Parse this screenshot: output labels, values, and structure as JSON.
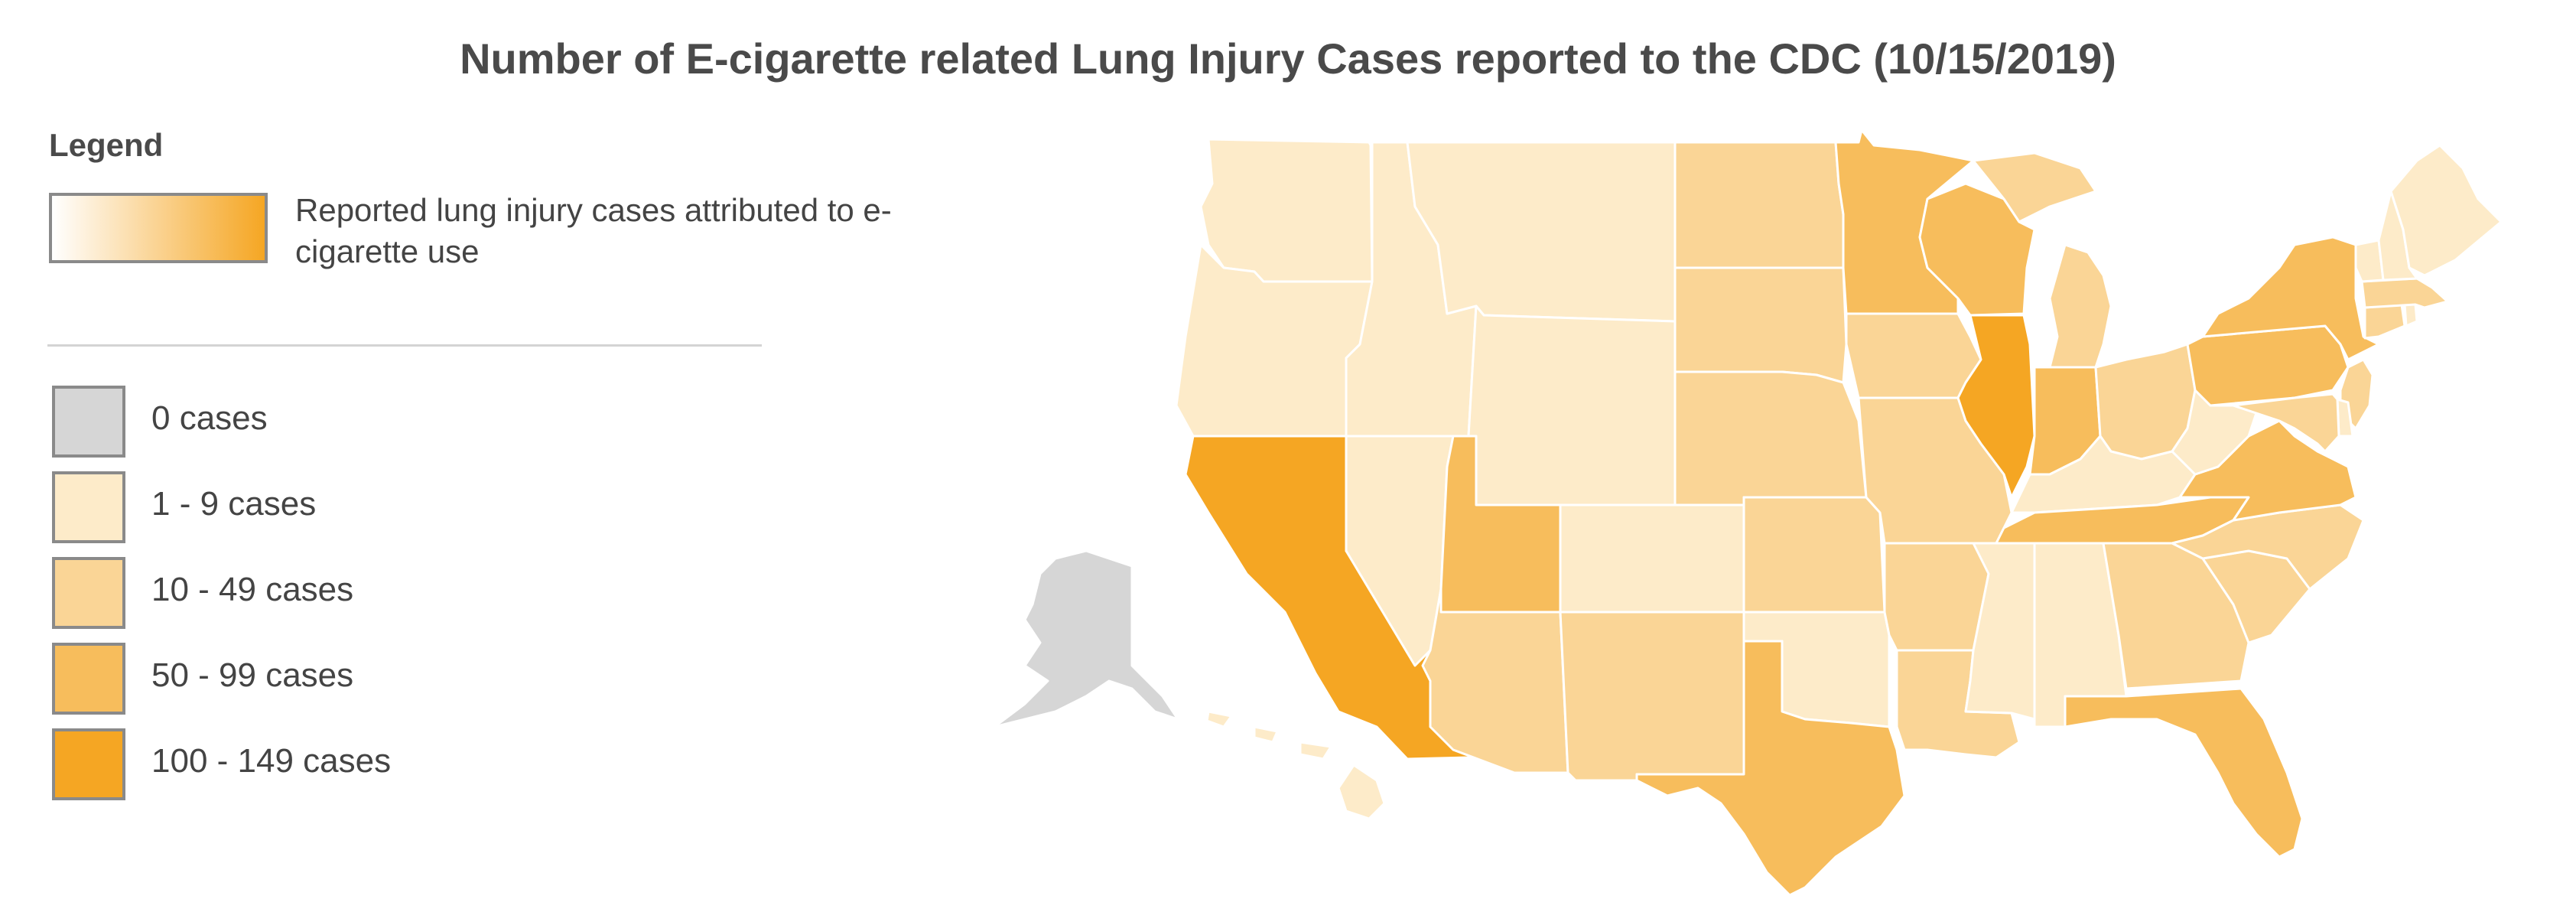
{
  "title": "Number of E-cigarette related Lung Injury Cases reported to the CDC (10/15/2019)",
  "legend": {
    "heading": "Legend",
    "gradient_label": "Reported lung injury cases attributed to e-cigarette use",
    "gradient_colors": [
      "#ffffff",
      "#f5a623"
    ],
    "bins": [
      {
        "label": "0 cases",
        "color": "#d6d6d6"
      },
      {
        "label": "1 - 9 cases",
        "color": "#fdebc9"
      },
      {
        "label": "10 - 49 cases",
        "color": "#fad596"
      },
      {
        "label": "50 - 99 cases",
        "color": "#f7bd5c"
      },
      {
        "label": "100 - 149 cases",
        "color": "#f5a623"
      }
    ]
  },
  "states": [
    {
      "code": "WA",
      "bin": 1
    },
    {
      "code": "OR",
      "bin": 1
    },
    {
      "code": "CA",
      "bin": 4
    },
    {
      "code": "NV",
      "bin": 1
    },
    {
      "code": "ID",
      "bin": 1
    },
    {
      "code": "MT",
      "bin": 1
    },
    {
      "code": "WY",
      "bin": 1
    },
    {
      "code": "UT",
      "bin": 3
    },
    {
      "code": "AZ",
      "bin": 2
    },
    {
      "code": "CO",
      "bin": 1
    },
    {
      "code": "NM",
      "bin": 2
    },
    {
      "code": "ND",
      "bin": 2
    },
    {
      "code": "SD",
      "bin": 2
    },
    {
      "code": "NE",
      "bin": 2
    },
    {
      "code": "KS",
      "bin": 2
    },
    {
      "code": "OK",
      "bin": 1
    },
    {
      "code": "TX",
      "bin": 3
    },
    {
      "code": "MN",
      "bin": 3
    },
    {
      "code": "IA",
      "bin": 2
    },
    {
      "code": "MO",
      "bin": 2
    },
    {
      "code": "AR",
      "bin": 2
    },
    {
      "code": "LA",
      "bin": 2
    },
    {
      "code": "WI",
      "bin": 3
    },
    {
      "code": "IL",
      "bin": 4
    },
    {
      "code": "MI",
      "bin": 2
    },
    {
      "code": "IN",
      "bin": 3
    },
    {
      "code": "OH",
      "bin": 2
    },
    {
      "code": "KY",
      "bin": 1
    },
    {
      "code": "TN",
      "bin": 3
    },
    {
      "code": "MS",
      "bin": 1
    },
    {
      "code": "AL",
      "bin": 1
    },
    {
      "code": "GA",
      "bin": 2
    },
    {
      "code": "FL",
      "bin": 3
    },
    {
      "code": "SC",
      "bin": 2
    },
    {
      "code": "NC",
      "bin": 2
    },
    {
      "code": "VA",
      "bin": 3
    },
    {
      "code": "WV",
      "bin": 1
    },
    {
      "code": "PA",
      "bin": 3
    },
    {
      "code": "NY",
      "bin": 3
    },
    {
      "code": "VT",
      "bin": 1
    },
    {
      "code": "NH",
      "bin": 1
    },
    {
      "code": "ME",
      "bin": 1
    },
    {
      "code": "MA",
      "bin": 2
    },
    {
      "code": "CT",
      "bin": 2
    },
    {
      "code": "RI",
      "bin": 1
    },
    {
      "code": "NJ",
      "bin": 2
    },
    {
      "code": "DE",
      "bin": 1
    },
    {
      "code": "MD",
      "bin": 2
    },
    {
      "code": "AK",
      "bin": 0
    },
    {
      "code": "HI",
      "bin": 1
    }
  ]
}
